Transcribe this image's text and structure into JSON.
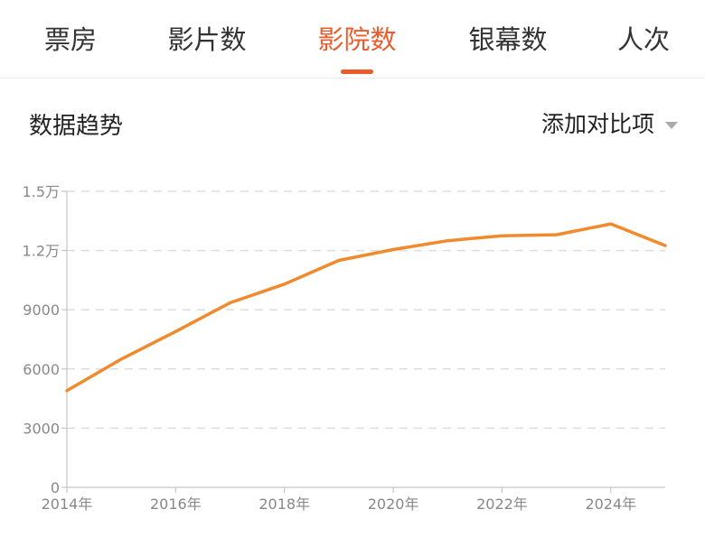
{
  "tabs": [
    {
      "label": "票房",
      "active": false
    },
    {
      "label": "影片数",
      "active": false
    },
    {
      "label": "影院数",
      "active": true
    },
    {
      "label": "银幕数",
      "active": false
    },
    {
      "label": "人次",
      "active": false
    }
  ],
  "section": {
    "title": "数据趋势",
    "compare_label": "添加对比项"
  },
  "colors": {
    "accent": "#ec5b2c",
    "line": "#f08a2c",
    "grid": "#dddddd",
    "tick_text": "#888888"
  },
  "chart_data": {
    "type": "line",
    "x": [
      2014,
      2015,
      2016,
      2017,
      2018,
      2019,
      2020,
      2021,
      2022,
      2023,
      2024,
      2025
    ],
    "x_ticks": [
      2014,
      2016,
      2018,
      2020,
      2022,
      2024
    ],
    "x_tick_labels": [
      "2014年",
      "2016年",
      "2018年",
      "2020年",
      "2022年",
      "2024年"
    ],
    "series": [
      {
        "values": [
          4900,
          6500,
          7900,
          9350,
          10300,
          11500,
          12050,
          12500,
          12750,
          12800,
          13350,
          12250
        ]
      }
    ],
    "y_ticks": [
      0,
      3000,
      6000,
      9000,
      12000,
      15000
    ],
    "y_tick_labels": [
      "0",
      "3000",
      "6000",
      "9000",
      "1.2万",
      "1.5万"
    ],
    "ylim": [
      0,
      15000
    ],
    "xlim": [
      2014,
      2025
    ],
    "grid": true
  }
}
